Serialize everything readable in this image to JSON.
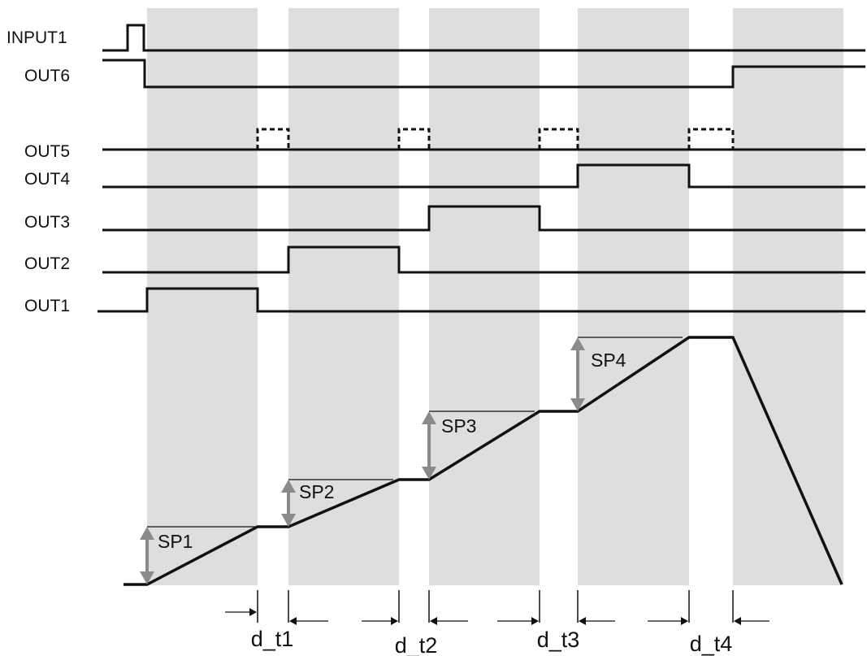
{
  "signals": [
    {
      "key": "input1",
      "label": "INPUT1"
    },
    {
      "key": "out6",
      "label": "OUT6"
    },
    {
      "key": "out5",
      "label": "OUT5"
    },
    {
      "key": "out4",
      "label": "OUT4"
    },
    {
      "key": "out3",
      "label": "OUT3"
    },
    {
      "key": "out2",
      "label": "OUT2"
    },
    {
      "key": "out1",
      "label": "OUT1"
    }
  ],
  "setpoints": [
    "SP1",
    "SP2",
    "SP3",
    "SP4"
  ],
  "delays": [
    "d_t1",
    "d_t2",
    "d_t3",
    "d_t4"
  ],
  "colors": {
    "band": "#dedede",
    "line": "#111111",
    "arrow": "#8a8a8a",
    "background": "#ffffff"
  }
}
